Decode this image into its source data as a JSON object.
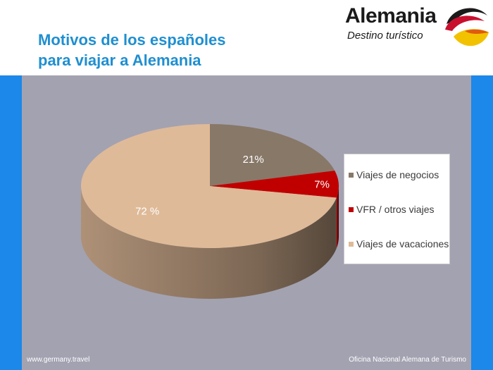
{
  "title": {
    "line1": "Motivos de los españoles",
    "line2": "para viajar a Alemania"
  },
  "logo": {
    "word": "Alemania",
    "tagline": "Destino turístico"
  },
  "footer": {
    "left": "www.germany.travel",
    "right": "Oficina Nacional Alemana de Turismo"
  },
  "colors": {
    "title": "#1f8fd0",
    "side_band": "#1b88ea",
    "plot_background": "#a3a2b1"
  },
  "chart_data": {
    "type": "pie",
    "style": "3d",
    "legend_position": "right",
    "slices": [
      {
        "name": "Viajes de negocios",
        "value": 21,
        "label": "21%",
        "color": "#887868"
      },
      {
        "name": "VFR / otros viajes",
        "value": 7,
        "label": "7%",
        "color": "#c00000"
      },
      {
        "name": "Viajes de vacaciones",
        "value": 72,
        "label": "72 %",
        "color": "#dfba98"
      }
    ]
  }
}
